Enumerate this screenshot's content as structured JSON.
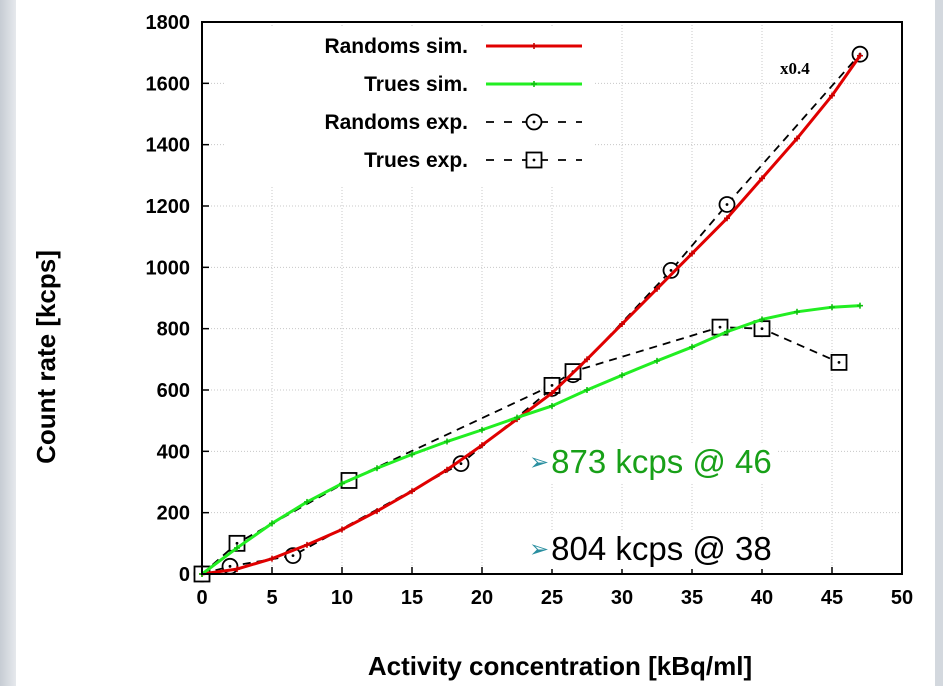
{
  "chart_data": {
    "type": "line",
    "xlabel": "Activity concentration [kBq/ml]",
    "ylabel": "Count rate [kcps]",
    "xlim": [
      0,
      50
    ],
    "ylim": [
      0,
      1800
    ],
    "xticks": [
      0,
      5,
      10,
      15,
      20,
      25,
      30,
      35,
      40,
      45,
      50
    ],
    "yticks": [
      0,
      200,
      400,
      600,
      800,
      1000,
      1200,
      1400,
      1600,
      1800
    ],
    "grid": true,
    "legend_position": "top-left",
    "annotation": "x0.4",
    "series": [
      {
        "name": "Randoms sim.",
        "style": "solid",
        "marker": "small-plus",
        "color": "#e00000",
        "x": [
          0,
          2.5,
          5,
          7.5,
          10,
          12.5,
          15,
          17.5,
          20,
          22.5,
          25,
          27.5,
          30,
          32.5,
          35,
          37.5,
          40,
          42.5,
          45,
          47
        ],
        "y": [
          0,
          16,
          50,
          95,
          145,
          205,
          270,
          340,
          420,
          505,
          590,
          700,
          815,
          930,
          1045,
          1160,
          1290,
          1420,
          1560,
          1690
        ]
      },
      {
        "name": "Trues sim.",
        "style": "solid",
        "marker": "small-plus",
        "color": "#22ee22",
        "x": [
          0,
          2.5,
          5,
          7.5,
          10,
          12.5,
          15,
          17.5,
          20,
          22.5,
          25,
          27.5,
          30,
          32.5,
          35,
          37.5,
          40,
          42.5,
          45,
          47
        ],
        "y": [
          0,
          85,
          165,
          235,
          295,
          345,
          390,
          432,
          470,
          510,
          548,
          600,
          648,
          695,
          740,
          790,
          830,
          855,
          870,
          875
        ]
      },
      {
        "name": "Randoms exp.",
        "style": "dashed",
        "marker": "circle-dot",
        "color": "#000000",
        "x": [
          0,
          2,
          6.5,
          18.5,
          25,
          26.5,
          33.5,
          37.5,
          47
        ],
        "y": [
          0,
          25,
          60,
          360,
          605,
          650,
          990,
          1205,
          1695
        ]
      },
      {
        "name": "Trues exp.",
        "style": "dashed",
        "marker": "square-dot",
        "color": "#000000",
        "x": [
          0,
          2.5,
          10.5,
          25,
          26.5,
          37,
          40,
          45.5
        ],
        "y": [
          0,
          100,
          305,
          615,
          660,
          805,
          800,
          690
        ]
      }
    ]
  },
  "callouts": [
    {
      "text": "873 kcps @ 46",
      "color": "#18a018"
    },
    {
      "text": "804 kcps @ 38",
      "color": "#000000"
    }
  ]
}
